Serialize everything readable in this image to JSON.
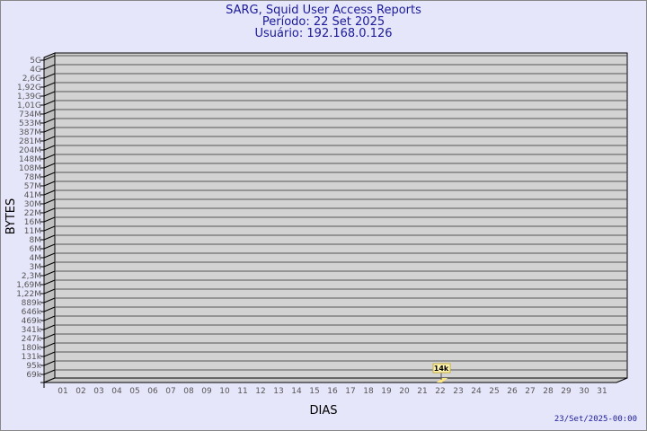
{
  "chart_data": {
    "type": "bar",
    "title": "SARG, Squid User Access Reports",
    "subtitle_period": "Período: 22 Set 2025",
    "subtitle_user": "Usuário: 192.168.0.126",
    "xlabel": "DIAS",
    "ylabel": "BYTES",
    "y_scale": "log",
    "y_tick_labels": [
      "5G",
      "4G",
      "2,6G",
      "1,92G",
      "1,39G",
      "1,01G",
      "734M",
      "533M",
      "387M",
      "281M",
      "204M",
      "148M",
      "108M",
      "78M",
      "57M",
      "41M",
      "30M",
      "22M",
      "16M",
      "11M",
      "8M",
      "6M",
      "4M",
      "3M",
      "2,3M",
      "1,69M",
      "1,22M",
      "889k",
      "646k",
      "469k",
      "341k",
      "247k",
      "180k",
      "131k",
      "95k",
      "69k"
    ],
    "categories": [
      "01",
      "02",
      "03",
      "04",
      "05",
      "06",
      "07",
      "08",
      "09",
      "10",
      "11",
      "12",
      "13",
      "14",
      "15",
      "16",
      "17",
      "18",
      "19",
      "20",
      "21",
      "22",
      "23",
      "24",
      "25",
      "26",
      "27",
      "28",
      "29",
      "30",
      "31"
    ],
    "bars": [
      {
        "category": "22",
        "value": 14000,
        "label": "14k"
      }
    ],
    "grid": true,
    "colors": {
      "background": "#e6e6fa",
      "wall": "#d3d3d3",
      "bar": "#ffe680",
      "text": "#1a1a9a"
    }
  },
  "footer": {
    "timestamp": "23/Set/2025-00:00"
  }
}
